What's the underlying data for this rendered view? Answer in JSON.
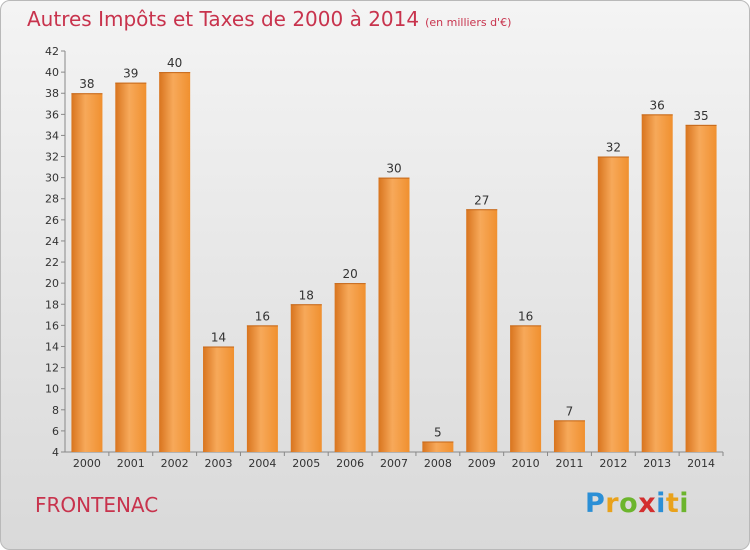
{
  "title": {
    "main": "Autres Impôts et Taxes de 2000 à 2014",
    "unit": "(en milliers d'€)"
  },
  "commune": "FRONTENAC",
  "logo": {
    "text": "Proxiti",
    "letters": [
      {
        "ch": "P",
        "color": "#2b8fd6"
      },
      {
        "ch": "r",
        "color": "#e9a21b"
      },
      {
        "ch": "o",
        "color": "#6cb52d"
      },
      {
        "ch": "x",
        "color": "#d32f2f"
      },
      {
        "ch": "i",
        "color": "#2b8fd6"
      },
      {
        "ch": "t",
        "color": "#e9a21b"
      },
      {
        "ch": "i",
        "color": "#6cb52d"
      }
    ]
  },
  "chart_data": {
    "type": "bar",
    "categories": [
      "2000",
      "2001",
      "2002",
      "2003",
      "2004",
      "2005",
      "2006",
      "2007",
      "2008",
      "2009",
      "2010",
      "2011",
      "2012",
      "2013",
      "2014"
    ],
    "values": [
      38,
      39,
      40,
      14,
      16,
      18,
      20,
      30,
      5,
      27,
      16,
      7,
      32,
      36,
      35
    ],
    "ylim": [
      4,
      42
    ],
    "yticks": [
      4,
      6,
      8,
      10,
      12,
      14,
      16,
      18,
      20,
      22,
      24,
      26,
      28,
      30,
      32,
      34,
      36,
      38,
      40,
      42
    ],
    "grid": false,
    "bar_color": "#f0902f",
    "bar_color_light": "#f7a95a",
    "bar_color_dark": "#d8741e"
  }
}
